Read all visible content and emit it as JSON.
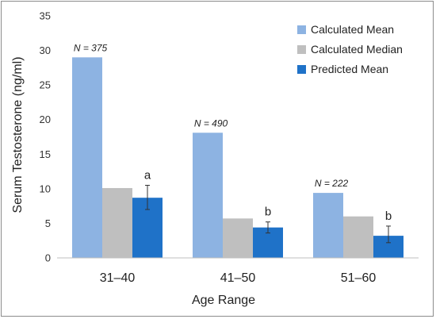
{
  "chart_data": {
    "type": "bar",
    "categories": [
      "31–40",
      "41–50",
      "51–60"
    ],
    "series": [
      {
        "name": "Calculated Mean",
        "values": [
          29.0,
          18.1,
          9.4
        ],
        "color": "#8db3e2"
      },
      {
        "name": "Calculated Median",
        "values": [
          10.1,
          5.7,
          6.0
        ],
        "color": "#bfbfbf"
      },
      {
        "name": "Predicted Mean",
        "values": [
          8.7,
          4.4,
          3.2
        ],
        "color": "#1f72c8",
        "error_low": [
          7.0,
          3.6,
          2.2
        ],
        "error_high": [
          10.5,
          5.2,
          4.6
        ]
      }
    ],
    "sample_sizes": [
      "N = 375",
      "N = 490",
      "N = 222"
    ],
    "significance": [
      "a",
      "b",
      "b"
    ],
    "xlabel": "Age Range",
    "ylabel": "Serum Testosterone (ng/ml)",
    "ylim": [
      0,
      35
    ],
    "yticks": [
      0,
      5,
      10,
      15,
      20,
      25,
      30,
      35
    ],
    "grid": false,
    "legend_position": "top-right"
  }
}
